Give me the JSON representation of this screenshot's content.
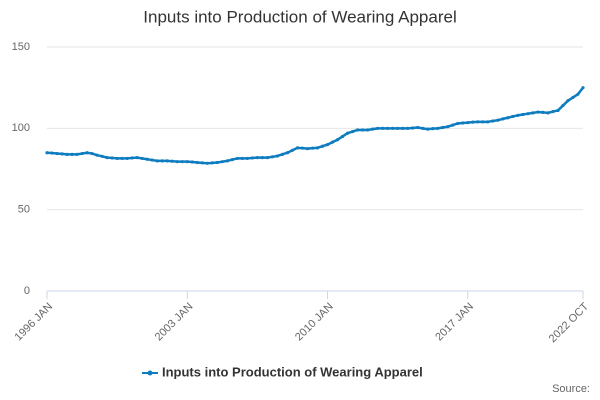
{
  "chart_data": {
    "type": "line",
    "title": "Inputs into Production of Wearing Apparel",
    "categories": [
      "1996 JAN",
      null,
      null,
      null,
      null,
      null,
      null,
      null,
      null,
      null,
      null,
      null,
      null,
      null,
      null,
      null,
      null,
      null,
      null,
      null,
      null,
      null,
      null,
      null,
      null,
      null,
      null,
      null,
      "2003 JAN",
      null,
      null,
      null,
      null,
      null,
      null,
      null,
      null,
      null,
      null,
      null,
      null,
      null,
      null,
      null,
      null,
      null,
      null,
      null,
      null,
      null,
      null,
      null,
      null,
      null,
      null,
      null,
      "2010 JAN",
      null,
      null,
      null,
      null,
      null,
      null,
      null,
      null,
      null,
      null,
      null,
      null,
      null,
      null,
      null,
      null,
      null,
      null,
      null,
      null,
      null,
      null,
      null,
      null,
      null,
      null,
      null,
      "2017 JAN",
      null,
      null,
      null,
      null,
      null,
      null,
      null,
      null,
      null,
      null,
      null,
      null,
      null,
      null,
      null,
      null,
      null,
      null,
      null,
      null,
      null,
      null,
      "2022 OCT"
    ],
    "series": [
      {
        "name": "Inputs into Production of Wearing Apparel",
        "color": "#0f7cc0",
        "values": [
          85,
          84.8,
          84.5,
          84.3,
          84,
          84,
          84,
          84.5,
          85,
          84.5,
          83.5,
          82.8,
          82,
          81.8,
          81.5,
          81.5,
          81.5,
          81.8,
          82,
          81.5,
          81,
          80.5,
          80,
          80,
          80,
          79.8,
          79.5,
          79.5,
          79.5,
          79.3,
          79,
          78.8,
          78.5,
          78.8,
          79,
          79.5,
          80,
          80.8,
          81.5,
          81.5,
          81.5,
          81.8,
          82,
          82,
          82,
          82.5,
          83,
          84,
          85,
          86.5,
          88,
          87.8,
          87.5,
          87.8,
          88,
          89,
          90,
          91.5,
          93,
          95,
          97,
          98,
          99,
          99,
          99,
          99.5,
          100,
          100,
          100,
          100,
          100,
          100,
          100,
          100.2,
          100.5,
          100,
          99.5,
          99.8,
          100,
          100.5,
          101,
          102,
          103,
          103.3,
          103.5,
          103.8,
          104,
          104,
          104,
          104.5,
          105,
          105.8,
          106.5,
          107.3,
          108,
          108.5,
          109,
          109.5,
          110,
          109.8,
          109.5,
          110.3,
          111,
          114,
          117,
          119,
          121,
          125
        ]
      }
    ],
    "ylim": [
      0,
      150
    ],
    "yticks": [
      0,
      50,
      100,
      150
    ],
    "grid": true,
    "legend": "bottom",
    "source_label": "Source:"
  }
}
